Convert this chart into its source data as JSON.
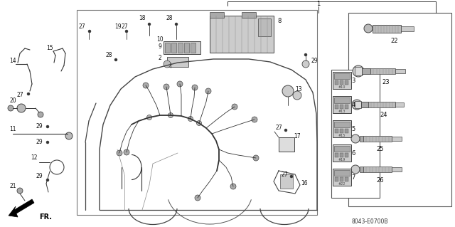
{
  "bg_color": "#ffffff",
  "fig_width": 6.4,
  "fig_height": 3.19,
  "catalog_code": "8043-E0700B",
  "fr_label": "FR.",
  "lc": "#333333",
  "tc": "#111111"
}
